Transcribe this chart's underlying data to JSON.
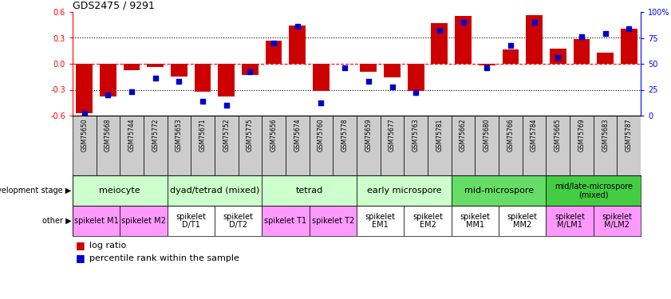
{
  "title": "GDS2475 / 9291",
  "samples": [
    "GSM75650",
    "GSM75668",
    "GSM75744",
    "GSM75772",
    "GSM75653",
    "GSM75671",
    "GSM75752",
    "GSM75775",
    "GSM75656",
    "GSM75674",
    "GSM75760",
    "GSM75778",
    "GSM75659",
    "GSM75677",
    "GSM75763",
    "GSM75781",
    "GSM75662",
    "GSM75680",
    "GSM75766",
    "GSM75784",
    "GSM75665",
    "GSM75769",
    "GSM75683",
    "GSM75787"
  ],
  "log_ratio": [
    -0.57,
    -0.38,
    -0.07,
    -0.04,
    -0.15,
    -0.32,
    -0.38,
    -0.13,
    0.27,
    0.44,
    -0.31,
    0.0,
    -0.09,
    -0.16,
    -0.31,
    0.47,
    0.55,
    -0.02,
    0.17,
    0.56,
    0.18,
    0.29,
    0.13,
    0.41
  ],
  "percentile": [
    2,
    20,
    23,
    36,
    33,
    14,
    10,
    42,
    70,
    86,
    12,
    46,
    33,
    28,
    22,
    82,
    90,
    46,
    68,
    90,
    56,
    76,
    79,
    84
  ],
  "ylim_left": [
    -0.6,
    0.6
  ],
  "ylim_right": [
    0,
    100
  ],
  "yticks_left": [
    -0.6,
    -0.3,
    0.0,
    0.3,
    0.6
  ],
  "yticks_right": [
    0,
    25,
    50,
    75,
    100
  ],
  "bar_color": "#CC0000",
  "dot_color": "#0000CC",
  "chart_bg": "#ffffff",
  "tick_label_bg": "#cccccc",
  "dev_stages": [
    {
      "label": "meiocyte",
      "start": 0,
      "end": 3,
      "color": "#ccffcc"
    },
    {
      "label": "dyad/tetrad (mixed)",
      "start": 4,
      "end": 7,
      "color": "#ccffcc"
    },
    {
      "label": "tetrad",
      "start": 8,
      "end": 11,
      "color": "#ccffcc"
    },
    {
      "label": "early microspore",
      "start": 12,
      "end": 15,
      "color": "#ccffcc"
    },
    {
      "label": "mid-microspore",
      "start": 16,
      "end": 19,
      "color": "#66dd66"
    },
    {
      "label": "mid/late-microspore\n(mixed)",
      "start": 20,
      "end": 23,
      "color": "#44cc44"
    }
  ],
  "other_stages": [
    {
      "label": "spikelet M1",
      "start": 0,
      "end": 1,
      "color": "#ff99ff"
    },
    {
      "label": "spikelet M2",
      "start": 2,
      "end": 3,
      "color": "#ff99ff"
    },
    {
      "label": "spikelet\nD/T1",
      "start": 4,
      "end": 5,
      "color": "#ffffff"
    },
    {
      "label": "spikelet\nD/T2",
      "start": 6,
      "end": 7,
      "color": "#ffffff"
    },
    {
      "label": "spikelet T1",
      "start": 8,
      "end": 9,
      "color": "#ff99ff"
    },
    {
      "label": "spikelet T2",
      "start": 10,
      "end": 11,
      "color": "#ff99ff"
    },
    {
      "label": "spikelet\nEM1",
      "start": 12,
      "end": 13,
      "color": "#ffffff"
    },
    {
      "label": "spikelet\nEM2",
      "start": 14,
      "end": 15,
      "color": "#ffffff"
    },
    {
      "label": "spikelet\nMM1",
      "start": 16,
      "end": 17,
      "color": "#ffffff"
    },
    {
      "label": "spikelet\nMM2",
      "start": 18,
      "end": 19,
      "color": "#ffffff"
    },
    {
      "label": "spikelet\nM/LM1",
      "start": 20,
      "end": 21,
      "color": "#ff99ff"
    },
    {
      "label": "spikelet\nM/LM2",
      "start": 22,
      "end": 23,
      "color": "#ff99ff"
    }
  ]
}
